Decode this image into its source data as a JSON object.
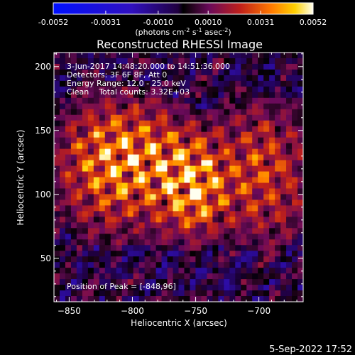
{
  "chart_data": {
    "type": "heatmap",
    "title": "Reconstructed RHESSI Image",
    "xlabel": "Heliocentric X (arcsec)",
    "ylabel": "Heliocentric Y (arcsec)",
    "xlim": [
      -862,
      -665
    ],
    "ylim": [
      16,
      211
    ],
    "xticks": [
      -850,
      -800,
      -750,
      -700
    ],
    "yticks": [
      50,
      100,
      150,
      200
    ],
    "colorbar": {
      "ticks": [
        "-0.0052",
        "-0.0031",
        "-0.0010",
        "0.0010",
        "0.0031",
        "0.0052"
      ],
      "range": [
        -0.0052,
        0.0052
      ],
      "units_prefix": "(photons cm",
      "units_exp1": "-2",
      "units_mid": " s",
      "units_exp2": "-1",
      "units_mid2": " asec",
      "units_exp3": "-2",
      "units_suffix": ")"
    },
    "annotations": {
      "time_range": "3-Jun-2017 14:48:20.000 to 14:51:36.000",
      "detectors": "Detectors: 3F 6F 8F, Att 0",
      "energy": "Energy Range: 12.0 - 25.0 keV",
      "clean": "Clean    Total counts: 3.32E+03",
      "peak": "Position of Peak = [-848,96]"
    },
    "peak": [
      -848,
      96
    ]
  },
  "footer": {
    "date": "5-Sep-2022 17:52"
  }
}
